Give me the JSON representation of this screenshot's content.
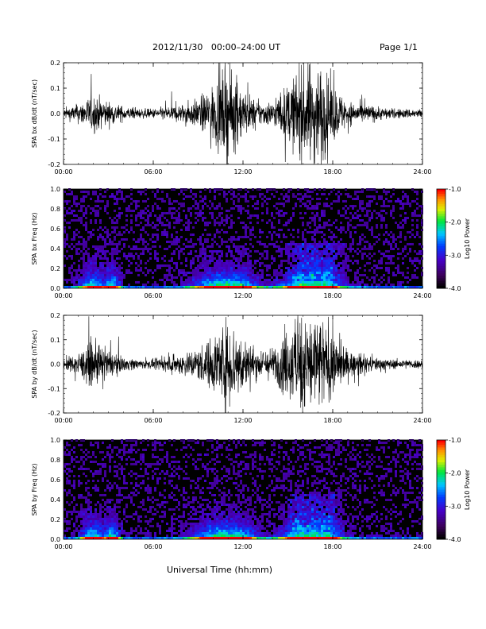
{
  "header": {
    "title": "2012/11/30   00:00–24:00 UT",
    "page": "Page 1/1"
  },
  "x_axis_title": "Universal Time (hh:mm)",
  "colors": {
    "trace": "#000000",
    "background": "#ffffff"
  },
  "chart_data": [
    {
      "type": "line",
      "ylabel": "SPA bx dB/dt (nT/sec)",
      "xlim": [
        0,
        24
      ],
      "ylim": [
        -0.2,
        0.2
      ],
      "x_ticks": [
        "00:00",
        "06:00",
        "12:00",
        "18:00",
        "24:00"
      ],
      "y_ticks": [
        "0.2",
        "0.1",
        "0.0",
        "-0.1",
        "-0.2"
      ],
      "y_tick_values": [
        0.2,
        0.1,
        0.0,
        -0.1,
        -0.2
      ],
      "series": [
        {
          "x_hours": [
            0,
            1,
            2,
            3,
            4,
            5,
            6,
            7,
            8,
            9,
            10,
            11,
            12,
            13,
            14,
            15,
            16,
            17,
            18,
            19,
            20,
            21,
            22,
            23,
            24
          ],
          "amplitude": [
            0.02,
            0.04,
            0.08,
            0.05,
            0.03,
            0.02,
            0.02,
            0.03,
            0.04,
            0.06,
            0.12,
            0.2,
            0.1,
            0.05,
            0.05,
            0.12,
            0.2,
            0.22,
            0.12,
            0.05,
            0.04,
            0.03,
            0.02,
            0.02,
            0.02
          ]
        }
      ]
    },
    {
      "type": "heatmap",
      "ylabel": "SPA bx Freq (Hz)",
      "xlim": [
        0,
        24
      ],
      "ylim": [
        0.0,
        1.0
      ],
      "x_ticks": [
        "00:00",
        "06:00",
        "12:00",
        "18:00",
        "24:00"
      ],
      "y_ticks": [
        "1.0",
        "0.8",
        "0.6",
        "0.4",
        "0.2",
        "0.0"
      ],
      "y_tick_values": [
        1.0,
        0.8,
        0.6,
        0.4,
        0.2,
        0.0
      ],
      "colorbar": {
        "label": "Log10 Power",
        "ticks": [
          "-1.0",
          "-2.0",
          "-3.0",
          "-4.0"
        ],
        "range": [
          -4.0,
          -1.0
        ]
      }
    },
    {
      "type": "line",
      "ylabel": "SPA by dB/dt (nT/sec)",
      "xlim": [
        0,
        24
      ],
      "ylim": [
        -0.2,
        0.2
      ],
      "x_ticks": [
        "00:00",
        "06:00",
        "12:00",
        "18:00",
        "24:00"
      ],
      "y_ticks": [
        "0.2",
        "0.1",
        "0.0",
        "-0.1",
        "-0.2"
      ],
      "y_tick_values": [
        0.2,
        0.1,
        0.0,
        -0.1,
        -0.2
      ],
      "series": [
        {
          "x_hours": [
            0,
            1,
            2,
            3,
            4,
            5,
            6,
            7,
            8,
            9,
            10,
            11,
            12,
            13,
            14,
            15,
            16,
            17,
            18,
            19,
            20,
            21,
            22,
            23,
            24
          ],
          "amplitude": [
            0.02,
            0.05,
            0.1,
            0.06,
            0.03,
            0.02,
            0.02,
            0.03,
            0.05,
            0.07,
            0.12,
            0.2,
            0.12,
            0.06,
            0.07,
            0.15,
            0.22,
            0.22,
            0.14,
            0.06,
            0.04,
            0.03,
            0.02,
            0.02,
            0.02
          ]
        }
      ]
    },
    {
      "type": "heatmap",
      "ylabel": "SPA by Freq (Hz)",
      "xlim": [
        0,
        24
      ],
      "ylim": [
        0.0,
        1.0
      ],
      "x_ticks": [
        "00:00",
        "06:00",
        "12:00",
        "18:00",
        "24:00"
      ],
      "y_ticks": [
        "1.0",
        "0.8",
        "0.6",
        "0.4",
        "0.2",
        "0.0"
      ],
      "y_tick_values": [
        1.0,
        0.8,
        0.6,
        0.4,
        0.2,
        0.0
      ],
      "colorbar": {
        "label": "Log10 Power",
        "ticks": [
          "-1.0",
          "-2.0",
          "-3.0",
          "-4.0"
        ],
        "range": [
          -4.0,
          -1.0
        ]
      }
    }
  ]
}
